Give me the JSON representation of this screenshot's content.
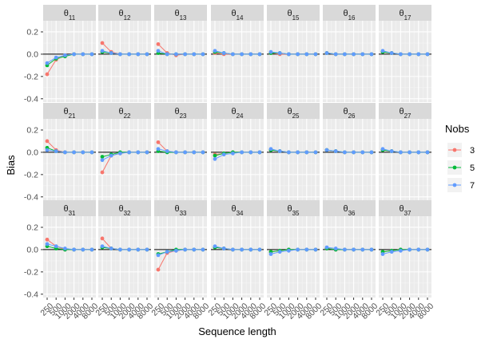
{
  "chart_data": {
    "type": "line",
    "facet_rows": [
      "1",
      "2",
      "3"
    ],
    "facet_cols": [
      "1",
      "2",
      "3",
      "4",
      "5",
      "6",
      "7"
    ],
    "facet_label_prefix": "θ",
    "x": [
      "250",
      "500",
      "1000",
      "2000",
      "4000",
      "8000"
    ],
    "xlabel": "Sequence length",
    "ylabel": "Bias",
    "ylim": [
      -0.43,
      0.3
    ],
    "yticks": [
      -0.4,
      -0.2,
      0.0,
      0.2
    ],
    "ytick_labels": [
      "-0.4",
      "-0.2",
      "0.0",
      "0.2"
    ],
    "reference_line": 0,
    "legend": {
      "title": "Nobs",
      "placement": "right"
    },
    "series": [
      {
        "name": "3",
        "color": "#F8766D"
      },
      {
        "name": "5",
        "color": "#00BA38"
      },
      {
        "name": "7",
        "color": "#619CFF"
      }
    ],
    "panels": [
      {
        "label": "11",
        "values": {
          "3": [
            -0.18,
            -0.05,
            -0.01,
            0.0,
            0.0,
            0.0
          ],
          "5": [
            -0.1,
            -0.04,
            -0.02,
            0.0,
            0.0,
            0.0
          ],
          "7": [
            -0.08,
            -0.03,
            -0.01,
            0.0,
            0.0,
            0.0
          ]
        }
      },
      {
        "label": "12",
        "values": {
          "3": [
            0.1,
            0.02,
            0.0,
            0.0,
            0.0,
            0.0
          ],
          "5": [
            0.02,
            0.01,
            0.0,
            0.0,
            0.0,
            0.0
          ],
          "7": [
            0.03,
            0.01,
            0.0,
            0.0,
            0.0,
            0.0
          ]
        }
      },
      {
        "label": "13",
        "values": {
          "3": [
            0.09,
            0.01,
            -0.01,
            0.0,
            0.0,
            0.0
          ],
          "5": [
            0.01,
            0.0,
            0.0,
            0.0,
            0.0,
            0.0
          ],
          "7": [
            0.03,
            0.0,
            0.0,
            0.0,
            0.0,
            0.0
          ]
        }
      },
      {
        "label": "14",
        "values": {
          "3": [
            0.01,
            0.0,
            0.0,
            0.0,
            0.0,
            0.0
          ],
          "5": [
            0.02,
            0.01,
            0.0,
            0.0,
            0.0,
            0.0
          ],
          "7": [
            0.03,
            0.01,
            0.0,
            0.0,
            0.0,
            0.0
          ]
        }
      },
      {
        "label": "15",
        "values": {
          "3": [
            0.01,
            0.0,
            0.0,
            0.0,
            0.0,
            0.0
          ],
          "5": [
            0.01,
            0.01,
            0.0,
            0.0,
            0.0,
            0.0
          ],
          "7": [
            0.02,
            0.01,
            0.0,
            0.0,
            0.0,
            0.0
          ]
        }
      },
      {
        "label": "16",
        "values": {
          "3": [
            0.01,
            0.0,
            0.0,
            0.0,
            0.0,
            0.0
          ],
          "5": [
            0.01,
            0.0,
            0.0,
            0.0,
            0.0,
            0.0
          ],
          "7": [
            0.01,
            0.0,
            0.0,
            0.0,
            0.0,
            0.0
          ]
        }
      },
      {
        "label": "17",
        "values": {
          "3": [
            0.02,
            0.01,
            0.0,
            0.0,
            0.0,
            0.0
          ],
          "5": [
            0.02,
            0.01,
            0.0,
            0.0,
            0.0,
            0.0
          ],
          "7": [
            0.03,
            0.01,
            0.0,
            0.0,
            0.0,
            0.0
          ]
        }
      },
      {
        "label": "21",
        "values": {
          "3": [
            0.1,
            0.02,
            0.0,
            0.0,
            0.0,
            0.0
          ],
          "5": [
            0.04,
            0.01,
            0.0,
            0.0,
            0.0,
            0.0
          ],
          "7": [
            0.02,
            0.01,
            0.0,
            0.0,
            0.0,
            0.0
          ]
        }
      },
      {
        "label": "22",
        "values": {
          "3": [
            -0.18,
            -0.03,
            -0.01,
            0.0,
            0.0,
            0.0
          ],
          "5": [
            -0.04,
            -0.02,
            0.0,
            0.0,
            0.0,
            0.0
          ],
          "7": [
            -0.07,
            -0.03,
            -0.01,
            0.0,
            0.0,
            0.0
          ]
        }
      },
      {
        "label": "23",
        "values": {
          "3": [
            0.09,
            0.01,
            0.0,
            0.0,
            0.0,
            0.0
          ],
          "5": [
            0.01,
            0.0,
            0.0,
            0.0,
            0.0,
            0.0
          ],
          "7": [
            0.03,
            0.01,
            0.0,
            0.0,
            0.0,
            0.0
          ]
        }
      },
      {
        "label": "24",
        "values": {
          "3": [
            -0.02,
            -0.01,
            0.0,
            0.0,
            0.0,
            0.0
          ],
          "5": [
            -0.03,
            -0.01,
            0.0,
            0.0,
            0.0,
            0.0
          ],
          "7": [
            -0.06,
            -0.02,
            -0.01,
            0.0,
            0.0,
            0.0
          ]
        }
      },
      {
        "label": "25",
        "values": {
          "3": [
            0.02,
            0.01,
            0.0,
            0.0,
            0.0,
            0.0
          ],
          "5": [
            0.02,
            0.01,
            0.0,
            0.0,
            0.0,
            0.0
          ],
          "7": [
            0.03,
            0.01,
            0.0,
            0.0,
            0.0,
            0.0
          ]
        }
      },
      {
        "label": "26",
        "values": {
          "3": [
            0.02,
            0.01,
            0.0,
            0.0,
            0.0,
            0.0
          ],
          "5": [
            0.02,
            0.01,
            0.0,
            0.0,
            0.0,
            0.0
          ],
          "7": [
            0.02,
            0.01,
            0.0,
            0.0,
            0.0,
            0.0
          ]
        }
      },
      {
        "label": "27",
        "values": {
          "3": [
            0.02,
            0.01,
            0.0,
            0.0,
            0.0,
            0.0
          ],
          "5": [
            0.02,
            0.01,
            0.0,
            0.0,
            0.0,
            0.0
          ],
          "7": [
            0.03,
            0.01,
            0.0,
            0.0,
            0.0,
            0.0
          ]
        }
      },
      {
        "label": "31",
        "values": {
          "3": [
            0.09,
            0.03,
            0.0,
            0.0,
            0.0,
            0.0
          ],
          "5": [
            0.03,
            0.01,
            0.0,
            0.0,
            0.0,
            0.0
          ],
          "7": [
            0.05,
            0.03,
            0.01,
            0.0,
            0.0,
            0.0
          ]
        }
      },
      {
        "label": "32",
        "values": {
          "3": [
            0.1,
            0.01,
            0.0,
            0.0,
            0.0,
            0.0
          ],
          "5": [
            0.02,
            0.01,
            0.0,
            0.0,
            0.0,
            0.0
          ],
          "7": [
            0.03,
            0.01,
            0.0,
            0.0,
            0.0,
            0.0
          ]
        }
      },
      {
        "label": "33",
        "values": {
          "3": [
            -0.18,
            -0.03,
            -0.01,
            0.0,
            0.0,
            0.0
          ],
          "5": [
            -0.04,
            -0.02,
            0.0,
            0.0,
            0.0,
            0.0
          ],
          "7": [
            -0.05,
            -0.02,
            -0.01,
            0.0,
            0.0,
            0.0
          ]
        }
      },
      {
        "label": "34",
        "values": {
          "3": [
            0.02,
            0.01,
            0.0,
            0.0,
            0.0,
            0.0
          ],
          "5": [
            0.02,
            0.01,
            0.0,
            0.0,
            0.0,
            0.0
          ],
          "7": [
            0.03,
            0.01,
            0.0,
            0.0,
            0.0,
            0.0
          ]
        }
      },
      {
        "label": "35",
        "values": {
          "3": [
            -0.02,
            -0.01,
            0.0,
            0.0,
            0.0,
            0.0
          ],
          "5": [
            -0.02,
            -0.01,
            0.0,
            0.0,
            0.0,
            0.0
          ],
          "7": [
            -0.04,
            -0.02,
            -0.01,
            0.0,
            0.0,
            0.0
          ]
        }
      },
      {
        "label": "36",
        "values": {
          "3": [
            0.01,
            0.0,
            0.0,
            0.0,
            0.0,
            0.0
          ],
          "5": [
            0.01,
            0.0,
            0.0,
            0.0,
            0.0,
            0.0
          ],
          "7": [
            0.02,
            0.01,
            0.0,
            0.0,
            0.0,
            0.0
          ]
        }
      },
      {
        "label": "37",
        "values": {
          "3": [
            -0.02,
            -0.01,
            0.0,
            0.0,
            0.0,
            0.0
          ],
          "5": [
            -0.02,
            -0.01,
            0.0,
            0.0,
            0.0,
            0.0
          ],
          "7": [
            -0.04,
            -0.02,
            -0.01,
            0.0,
            0.0,
            0.0
          ]
        }
      }
    ]
  }
}
